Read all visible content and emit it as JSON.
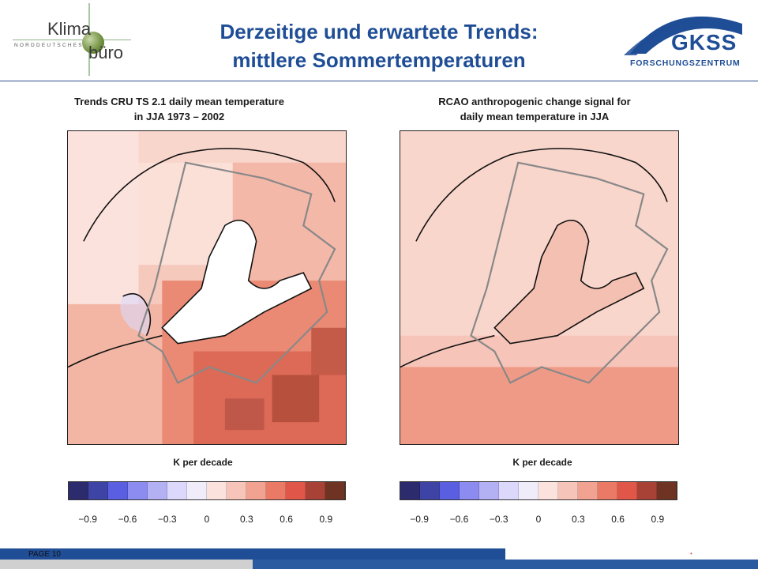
{
  "slide": {
    "title_line1": "Derzeitige und erwartete Trends:",
    "title_line2": "mittlere Sommertemperaturen",
    "page_label": "PAGE 10"
  },
  "logos": {
    "left": {
      "klima": "Klima",
      "buero": "büro",
      "norddeutsches": "NORDDEUTSCHES"
    },
    "right": {
      "name": "GKSS",
      "subtitle": "FORSCHUNGSZENTRUM"
    }
  },
  "panels": [
    {
      "title_line1": "Trends CRU TS 2.1 daily mean temperature",
      "title_line2": "in JJA 1973 – 2002",
      "unit": "K per decade"
    },
    {
      "title_line1": "RCAO anthropogenic change signal for",
      "title_line2": "daily mean temperature in JJA",
      "unit": "K per decade"
    }
  ],
  "colorbar": {
    "colors": [
      "#2c2b6e",
      "#3d44a6",
      "#5a5ee0",
      "#8c8cf0",
      "#b4b0f4",
      "#dcd8fb",
      "#f0ecfa",
      "#fbe2dc",
      "#f6c4b8",
      "#f1a290",
      "#ea7a66",
      "#e0574a",
      "#a84236",
      "#6e3322"
    ],
    "tick_labels": [
      "−0.9",
      "−0.6",
      "−0.3",
      "0",
      "0.3",
      "0.6",
      "0.9"
    ]
  },
  "colors": {
    "title_blue": "#1f4e96",
    "land_white": "#ffffff",
    "light_warming": "#f8d0c6",
    "medium_warming": "#f2a090",
    "strong_warming": "#e2705c",
    "very_strong": "#a8483a"
  }
}
